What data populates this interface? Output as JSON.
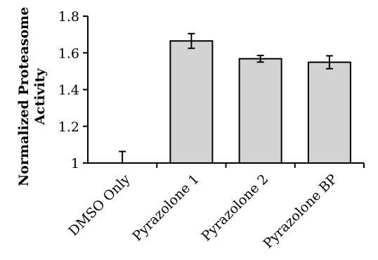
{
  "chart_data": {
    "type": "bar",
    "title": "",
    "xlabel": "",
    "ylabel_lines": [
      "Normalized Proteasome",
      "Activity"
    ],
    "categories": [
      "DMSO Only",
      "Pyrazolone 1",
      "Pyrazolone 2",
      "Pyrazolone BP"
    ],
    "values": [
      1.0,
      1.665,
      1.568,
      1.549
    ],
    "errors": [
      0.063,
      0.04,
      0.018,
      0.035
    ],
    "ylim": [
      1,
      1.8
    ],
    "yticks": [
      "1",
      "1.2",
      "1.4",
      "1.6",
      "1.8"
    ],
    "bar_color": "#d3d3d3",
    "grid": false,
    "legend": "none"
  }
}
